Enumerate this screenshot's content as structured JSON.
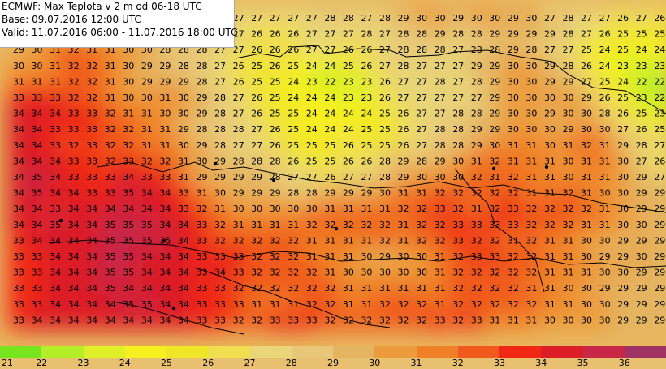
{
  "info": {
    "line1": "ECMWF: Max Teplota v 2 m od 06-18 UTC",
    "line2": "Base: 09.07.2016 12:00 UTC",
    "line3": "Valid: 11.07.2016 06:00 - 11.07.2016 18:00 UTC"
  },
  "legend": {
    "values": [
      "21",
      "22",
      "23",
      "24",
      "25",
      "26",
      "27",
      "28",
      "29",
      "30",
      "31",
      "32",
      "33",
      "34",
      "35",
      "36"
    ],
    "colors": [
      "#76e41e",
      "#b4ee28",
      "#e0f028",
      "#f6f020",
      "#f0e628",
      "#f0de50",
      "#e8d678",
      "#e8c878",
      "#e4b460",
      "#ec9c3c",
      "#f08028",
      "#f05a1c",
      "#f02814",
      "#dc1e28",
      "#c82846",
      "#a03264"
    ]
  },
  "grid": {
    "rows": [
      [
        "",
        "",
        "",
        "",
        "",
        "",
        "",
        "",
        "",
        "",
        "",
        "",
        "27",
        "27",
        "27",
        "27",
        "27",
        "28",
        "28",
        "27",
        "28",
        "29",
        "30",
        "30",
        "29",
        "30",
        "30",
        "29",
        "30",
        "27",
        "28",
        "27",
        "27",
        "26",
        "27",
        "26"
      ],
      [
        "",
        "",
        "",
        "",
        "",
        "",
        "",
        "",
        "",
        "",
        "",
        "",
        "27",
        "26",
        "26",
        "26",
        "27",
        "27",
        "27",
        "28",
        "27",
        "28",
        "28",
        "29",
        "28",
        "28",
        "29",
        "29",
        "29",
        "29",
        "28",
        "27",
        "26",
        "25",
        "25",
        "25"
      ],
      [
        "29",
        "30",
        "31",
        "32",
        "31",
        "31",
        "30",
        "30",
        "28",
        "28",
        "28",
        "27",
        "27",
        "26",
        "26",
        "26",
        "27",
        "27",
        "26",
        "26",
        "27",
        "28",
        "28",
        "28",
        "27",
        "28",
        "28",
        "29",
        "28",
        "27",
        "27",
        "25",
        "24",
        "25",
        "24",
        "24"
      ],
      [
        "30",
        "30",
        "31",
        "32",
        "32",
        "31",
        "30",
        "29",
        "29",
        "28",
        "28",
        "27",
        "26",
        "25",
        "26",
        "25",
        "24",
        "24",
        "25",
        "26",
        "27",
        "28",
        "27",
        "27",
        "27",
        "29",
        "29",
        "30",
        "30",
        "29",
        "28",
        "26",
        "24",
        "23",
        "23",
        "23"
      ],
      [
        "31",
        "31",
        "31",
        "32",
        "32",
        "31",
        "30",
        "29",
        "29",
        "29",
        "28",
        "27",
        "26",
        "25",
        "25",
        "24",
        "23",
        "22",
        "23",
        "23",
        "26",
        "27",
        "27",
        "28",
        "27",
        "28",
        "29",
        "30",
        "30",
        "29",
        "29",
        "27",
        "25",
        "24",
        "22",
        "22"
      ],
      [
        "33",
        "33",
        "33",
        "32",
        "32",
        "31",
        "30",
        "30",
        "31",
        "30",
        "29",
        "28",
        "27",
        "26",
        "25",
        "24",
        "24",
        "24",
        "23",
        "23",
        "26",
        "27",
        "27",
        "27",
        "27",
        "27",
        "29",
        "30",
        "30",
        "30",
        "30",
        "29",
        "26",
        "25",
        "23",
        "22"
      ],
      [
        "34",
        "34",
        "34",
        "33",
        "33",
        "32",
        "31",
        "31",
        "30",
        "30",
        "29",
        "28",
        "27",
        "26",
        "25",
        "25",
        "24",
        "24",
        "24",
        "24",
        "25",
        "26",
        "27",
        "27",
        "28",
        "28",
        "29",
        "30",
        "30",
        "29",
        "30",
        "30",
        "28",
        "26",
        "25",
        "23"
      ],
      [
        "34",
        "34",
        "33",
        "33",
        "33",
        "32",
        "32",
        "31",
        "31",
        "29",
        "28",
        "28",
        "28",
        "27",
        "26",
        "25",
        "24",
        "24",
        "24",
        "25",
        "25",
        "26",
        "27",
        "28",
        "28",
        "29",
        "29",
        "30",
        "30",
        "30",
        "29",
        "30",
        "30",
        "27",
        "26",
        "25"
      ],
      [
        "34",
        "34",
        "33",
        "32",
        "33",
        "32",
        "32",
        "31",
        "31",
        "30",
        "29",
        "28",
        "27",
        "27",
        "26",
        "25",
        "25",
        "25",
        "26",
        "25",
        "25",
        "26",
        "27",
        "28",
        "28",
        "29",
        "30",
        "31",
        "31",
        "30",
        "31",
        "32",
        "31",
        "29",
        "28",
        "27"
      ],
      [
        "34",
        "34",
        "34",
        "33",
        "33",
        "32",
        "33",
        "32",
        "32",
        "31",
        "30",
        "29",
        "28",
        "28",
        "28",
        "26",
        "25",
        "25",
        "26",
        "26",
        "28",
        "29",
        "28",
        "29",
        "30",
        "31",
        "32",
        "31",
        "31",
        "31",
        "30",
        "31",
        "31",
        "30",
        "27",
        "26"
      ],
      [
        "34",
        "35",
        "34",
        "33",
        "33",
        "33",
        "34",
        "33",
        "33",
        "31",
        "29",
        "29",
        "29",
        "29",
        "28",
        "27",
        "27",
        "26",
        "27",
        "27",
        "28",
        "29",
        "30",
        "30",
        "30",
        "32",
        "31",
        "32",
        "31",
        "31",
        "30",
        "31",
        "31",
        "30",
        "29",
        "27"
      ],
      [
        "34",
        "35",
        "34",
        "34",
        "33",
        "33",
        "35",
        "34",
        "34",
        "33",
        "31",
        "30",
        "29",
        "29",
        "29",
        "28",
        "28",
        "29",
        "29",
        "29",
        "30",
        "31",
        "31",
        "32",
        "32",
        "32",
        "32",
        "32",
        "31",
        "31",
        "32",
        "31",
        "30",
        "30",
        "29",
        "29"
      ],
      [
        "34",
        "34",
        "33",
        "34",
        "34",
        "34",
        "34",
        "34",
        "34",
        "33",
        "32",
        "31",
        "30",
        "30",
        "30",
        "30",
        "30",
        "31",
        "31",
        "31",
        "31",
        "32",
        "32",
        "33",
        "32",
        "31",
        "32",
        "33",
        "32",
        "32",
        "32",
        "32",
        "31",
        "30",
        "29",
        "29"
      ],
      [
        "34",
        "34",
        "35",
        "34",
        "34",
        "35",
        "35",
        "35",
        "34",
        "34",
        "33",
        "32",
        "31",
        "31",
        "31",
        "31",
        "32",
        "32",
        "32",
        "32",
        "32",
        "31",
        "32",
        "32",
        "33",
        "33",
        "33",
        "33",
        "32",
        "32",
        "32",
        "31",
        "31",
        "30",
        "30",
        "29"
      ],
      [
        "33",
        "34",
        "34",
        "34",
        "34",
        "35",
        "35",
        "35",
        "35",
        "34",
        "33",
        "32",
        "32",
        "32",
        "32",
        "32",
        "31",
        "31",
        "31",
        "31",
        "32",
        "31",
        "32",
        "32",
        "33",
        "32",
        "32",
        "31",
        "32",
        "31",
        "31",
        "30",
        "30",
        "29",
        "29",
        "29"
      ],
      [
        "33",
        "33",
        "34",
        "34",
        "34",
        "35",
        "35",
        "34",
        "34",
        "34",
        "33",
        "33",
        "33",
        "32",
        "32",
        "32",
        "31",
        "31",
        "31",
        "30",
        "29",
        "30",
        "30",
        "31",
        "32",
        "33",
        "33",
        "32",
        "32",
        "31",
        "31",
        "30",
        "29",
        "29",
        "30",
        "29"
      ],
      [
        "33",
        "33",
        "34",
        "34",
        "34",
        "35",
        "35",
        "34",
        "34",
        "34",
        "33",
        "34",
        "33",
        "32",
        "32",
        "32",
        "32",
        "31",
        "30",
        "30",
        "30",
        "30",
        "30",
        "31",
        "32",
        "32",
        "32",
        "32",
        "32",
        "31",
        "31",
        "31",
        "30",
        "30",
        "29",
        "29"
      ],
      [
        "33",
        "33",
        "34",
        "34",
        "34",
        "35",
        "34",
        "34",
        "34",
        "34",
        "33",
        "33",
        "32",
        "32",
        "32",
        "32",
        "32",
        "32",
        "31",
        "31",
        "31",
        "31",
        "31",
        "31",
        "32",
        "32",
        "32",
        "32",
        "31",
        "31",
        "30",
        "30",
        "29",
        "29",
        "29",
        "29"
      ],
      [
        "33",
        "33",
        "34",
        "34",
        "34",
        "34",
        "35",
        "35",
        "34",
        "34",
        "33",
        "33",
        "33",
        "31",
        "31",
        "31",
        "32",
        "32",
        "31",
        "31",
        "32",
        "32",
        "32",
        "31",
        "32",
        "32",
        "32",
        "32",
        "32",
        "31",
        "31",
        "30",
        "30",
        "29",
        "29",
        "29"
      ],
      [
        "33",
        "34",
        "34",
        "34",
        "34",
        "34",
        "34",
        "34",
        "34",
        "34",
        "33",
        "33",
        "32",
        "32",
        "33",
        "33",
        "33",
        "32",
        "32",
        "32",
        "32",
        "32",
        "32",
        "33",
        "32",
        "33",
        "31",
        "31",
        "31",
        "30",
        "30",
        "30",
        "30",
        "29",
        "29",
        "29"
      ]
    ]
  }
}
